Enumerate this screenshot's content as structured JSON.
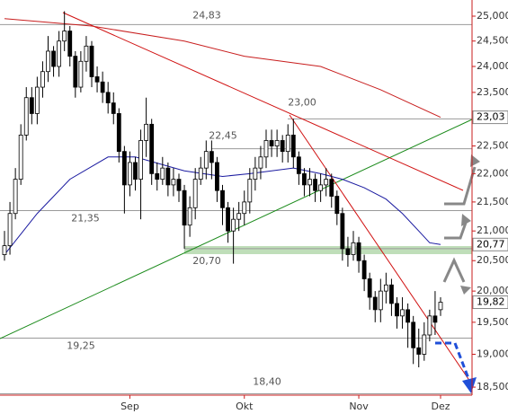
{
  "chart_data": {
    "type": "candlestick",
    "log_scale": true,
    "ylim": [
      18.38,
      25.33
    ],
    "yticks": [
      {
        "value": 18.5,
        "label": "18,500"
      },
      {
        "value": 19,
        "label": "19,000"
      },
      {
        "value": 19.5,
        "label": "19,500"
      },
      {
        "value": 20,
        "label": "20,000"
      },
      {
        "value": 20.5,
        "label": "20,500"
      },
      {
        "value": 21,
        "label": "21,000"
      },
      {
        "value": 21.5,
        "label": "21,500"
      },
      {
        "value": 22,
        "label": "22,000"
      },
      {
        "value": 22.5,
        "label": "22,500"
      },
      {
        "value": 23,
        "label": "23,000"
      },
      {
        "value": 23.5,
        "label": "23,500"
      },
      {
        "value": 24,
        "label": "24,000"
      },
      {
        "value": 24.5,
        "label": "24,500"
      },
      {
        "value": 25,
        "label": "25,000"
      }
    ],
    "xlim": [
      0,
      86.6
    ],
    "xticks": [
      {
        "value": 23,
        "label": "Sep"
      },
      {
        "value": 44,
        "label": "Okt"
      },
      {
        "value": 65,
        "label": "Nov"
      },
      {
        "value": 80,
        "label": "Dez"
      }
    ],
    "up_color": "#ffffff",
    "down_color": "#000000",
    "open": [
      20.6,
      20.75,
      21.3,
      21.9,
      22.7,
      23.4,
      23.1,
      23.6,
      23.9,
      24.3,
      24.0,
      24.5,
      24.7,
      24.2,
      23.6,
      24.1,
      24.4,
      23.8,
      23.7,
      23.5,
      23.3,
      23.1,
      22.4,
      21.8,
      22.2,
      21.9,
      22.6,
      22.9,
      22.0,
      21.9,
      22.1,
      21.8,
      21.9,
      21.7,
      21.1,
      21.4,
      21.9,
      22.1,
      22.4,
      22.2,
      21.7,
      21.4,
      21.0,
      21.2,
      21.3,
      21.5,
      21.9,
      22.1,
      22.3,
      22.6,
      22.5,
      22.6,
      22.4,
      22.7,
      22.3,
      22.0,
      21.8,
      21.9,
      21.7,
      21.8,
      21.9,
      21.6,
      21.3,
      20.7,
      20.6,
      20.8,
      20.5,
      20.2,
      19.9,
      19.7,
      20.0,
      20.1,
      19.8,
      19.6,
      19.7,
      19.5,
      19.1,
      19.0,
      19.3,
      19.6,
      19.7
    ],
    "high": [
      21.0,
      21.5,
      22.1,
      22.9,
      23.6,
      23.6,
      23.8,
      24.1,
      24.6,
      24.4,
      24.7,
      25.1,
      24.8,
      24.3,
      24.3,
      24.6,
      24.5,
      24.0,
      23.9,
      23.7,
      23.5,
      23.2,
      22.5,
      22.4,
      22.3,
      22.8,
      23.4,
      23.0,
      22.2,
      22.3,
      22.2,
      22.1,
      22.0,
      21.8,
      21.6,
      22.1,
      22.3,
      22.6,
      22.6,
      22.3,
      21.8,
      21.5,
      21.4,
      21.5,
      21.7,
      22.1,
      22.3,
      22.5,
      22.8,
      22.8,
      22.8,
      22.7,
      22.9,
      23.0,
      22.4,
      22.1,
      22.1,
      22.0,
      22.0,
      22.1,
      22.0,
      21.7,
      21.4,
      20.9,
      21.0,
      20.9,
      20.6,
      20.3,
      20.0,
      20.2,
      20.3,
      20.2,
      19.9,
      19.9,
      19.8,
      19.6,
      19.4,
      19.5,
      19.7,
      20.0,
      19.9
    ],
    "low": [
      20.5,
      20.6,
      21.2,
      21.8,
      22.6,
      22.9,
      22.9,
      23.4,
      23.7,
      23.8,
      23.8,
      24.3,
      24.0,
      23.4,
      23.5,
      23.9,
      23.6,
      23.5,
      23.3,
      23.1,
      22.9,
      22.2,
      21.3,
      21.6,
      21.7,
      21.2,
      22.3,
      21.8,
      21.7,
      21.8,
      21.6,
      21.6,
      21.5,
      20.7,
      20.9,
      21.2,
      21.8,
      21.9,
      21.9,
      21.5,
      21.1,
      20.8,
      20.45,
      21.0,
      21.1,
      21.3,
      21.7,
      21.9,
      22.1,
      22.3,
      22.3,
      22.2,
      22.2,
      22.1,
      21.8,
      21.6,
      21.6,
      21.5,
      21.5,
      21.6,
      21.4,
      21.1,
      20.5,
      20.4,
      20.5,
      20.3,
      20.0,
      19.7,
      19.5,
      19.5,
      19.8,
      19.6,
      19.4,
      19.4,
      19.1,
      18.85,
      18.8,
      18.9,
      19.2,
      19.3,
      19.6
    ],
    "close": [
      20.75,
      21.3,
      21.9,
      22.7,
      23.4,
      23.1,
      23.6,
      23.9,
      24.3,
      24.0,
      24.5,
      24.7,
      24.2,
      23.6,
      24.1,
      24.4,
      23.8,
      23.7,
      23.5,
      23.3,
      23.1,
      22.4,
      21.8,
      22.2,
      21.9,
      22.6,
      22.9,
      22.0,
      21.9,
      22.1,
      21.8,
      21.9,
      21.7,
      21.1,
      21.4,
      21.9,
      22.1,
      22.4,
      22.2,
      21.7,
      21.4,
      21.0,
      21.2,
      21.3,
      21.5,
      21.9,
      22.1,
      22.3,
      22.6,
      22.5,
      22.6,
      22.4,
      22.7,
      22.3,
      22.0,
      21.8,
      21.9,
      21.7,
      21.8,
      21.9,
      21.6,
      21.3,
      20.7,
      20.6,
      20.8,
      20.5,
      20.2,
      19.9,
      19.7,
      20.0,
      20.1,
      19.8,
      19.6,
      19.7,
      19.5,
      19.1,
      19.0,
      19.3,
      19.6,
      19.5,
      19.82
    ],
    "lines": [
      {
        "color": "#1a1aa0",
        "x": [
          0,
          6,
          12,
          19,
          24,
          33,
          40,
          45,
          53,
          58,
          62,
          66,
          70,
          73,
          76,
          78,
          80
        ],
        "values": [
          20.6,
          21.3,
          21.9,
          22.3,
          22.3,
          22.05,
          21.95,
          22.0,
          22.1,
          22.0,
          21.9,
          21.75,
          21.55,
          21.3,
          21.0,
          20.8,
          20.77
        ]
      },
      {
        "color": "#c81e1e",
        "x": [
          0,
          16,
          33,
          44,
          58,
          69,
          80
        ],
        "values": [
          24.95,
          24.8,
          24.5,
          24.2,
          24.0,
          23.55,
          23.03
        ]
      }
    ],
    "levels": [
      {
        "value": 24.83,
        "label": "24,83"
      },
      {
        "value": 23.0,
        "label": "23,00"
      },
      {
        "value": 22.45,
        "label": "22,45"
      },
      {
        "value": 21.35,
        "label": "21,35"
      },
      {
        "value": 20.7,
        "label": "20,70"
      },
      {
        "value": 19.25,
        "label": "19,25"
      },
      {
        "value": 18.4,
        "label": "18,40"
      }
    ],
    "price_markers": [
      {
        "value": 23.03,
        "label": "23,03"
      },
      {
        "value": 20.77,
        "label": "20,77"
      },
      {
        "value": 19.82,
        "label": "19,82"
      }
    ]
  }
}
